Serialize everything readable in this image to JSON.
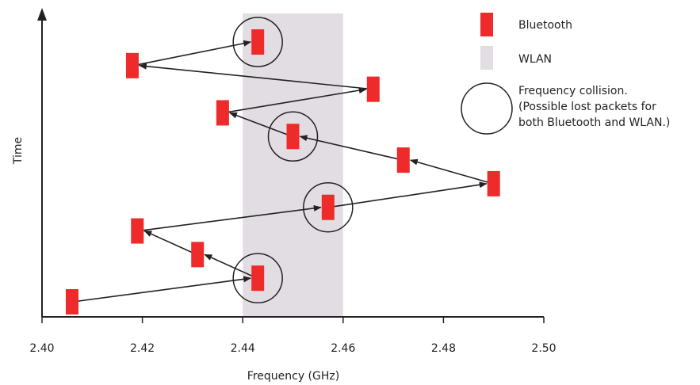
{
  "axes": {
    "x_label": "Frequency (GHz)",
    "y_label": "Time",
    "x_ticks": [
      "2.40",
      "2.42",
      "2.44",
      "2.46",
      "2.48",
      "2.50"
    ],
    "x_range": [
      2.4,
      2.5
    ]
  },
  "wlan_band": {
    "from": 2.44,
    "to": 2.46,
    "color": "#e2dde2"
  },
  "bluetooth_color": "#ee2a2a",
  "hops": [
    {
      "freq": 2.406,
      "slot": 1
    },
    {
      "freq": 2.443,
      "slot": 2,
      "collision": true
    },
    {
      "freq": 2.431,
      "slot": 3
    },
    {
      "freq": 2.419,
      "slot": 4
    },
    {
      "freq": 2.457,
      "slot": 5,
      "collision": true
    },
    {
      "freq": 2.49,
      "slot": 6
    },
    {
      "freq": 2.472,
      "slot": 7
    },
    {
      "freq": 2.45,
      "slot": 8,
      "collision": true
    },
    {
      "freq": 2.436,
      "slot": 9
    },
    {
      "freq": 2.466,
      "slot": 10
    },
    {
      "freq": 2.418,
      "slot": 11
    },
    {
      "freq": 2.443,
      "slot": 12,
      "collision": true
    }
  ],
  "legend": {
    "bluetooth": "Bluetooth",
    "wlan": "WLAN",
    "collision_line1": "Frequency collision.",
    "collision_line2": "(Possible lost packets for",
    "collision_line3": "both Bluetooth and WLAN.)"
  }
}
